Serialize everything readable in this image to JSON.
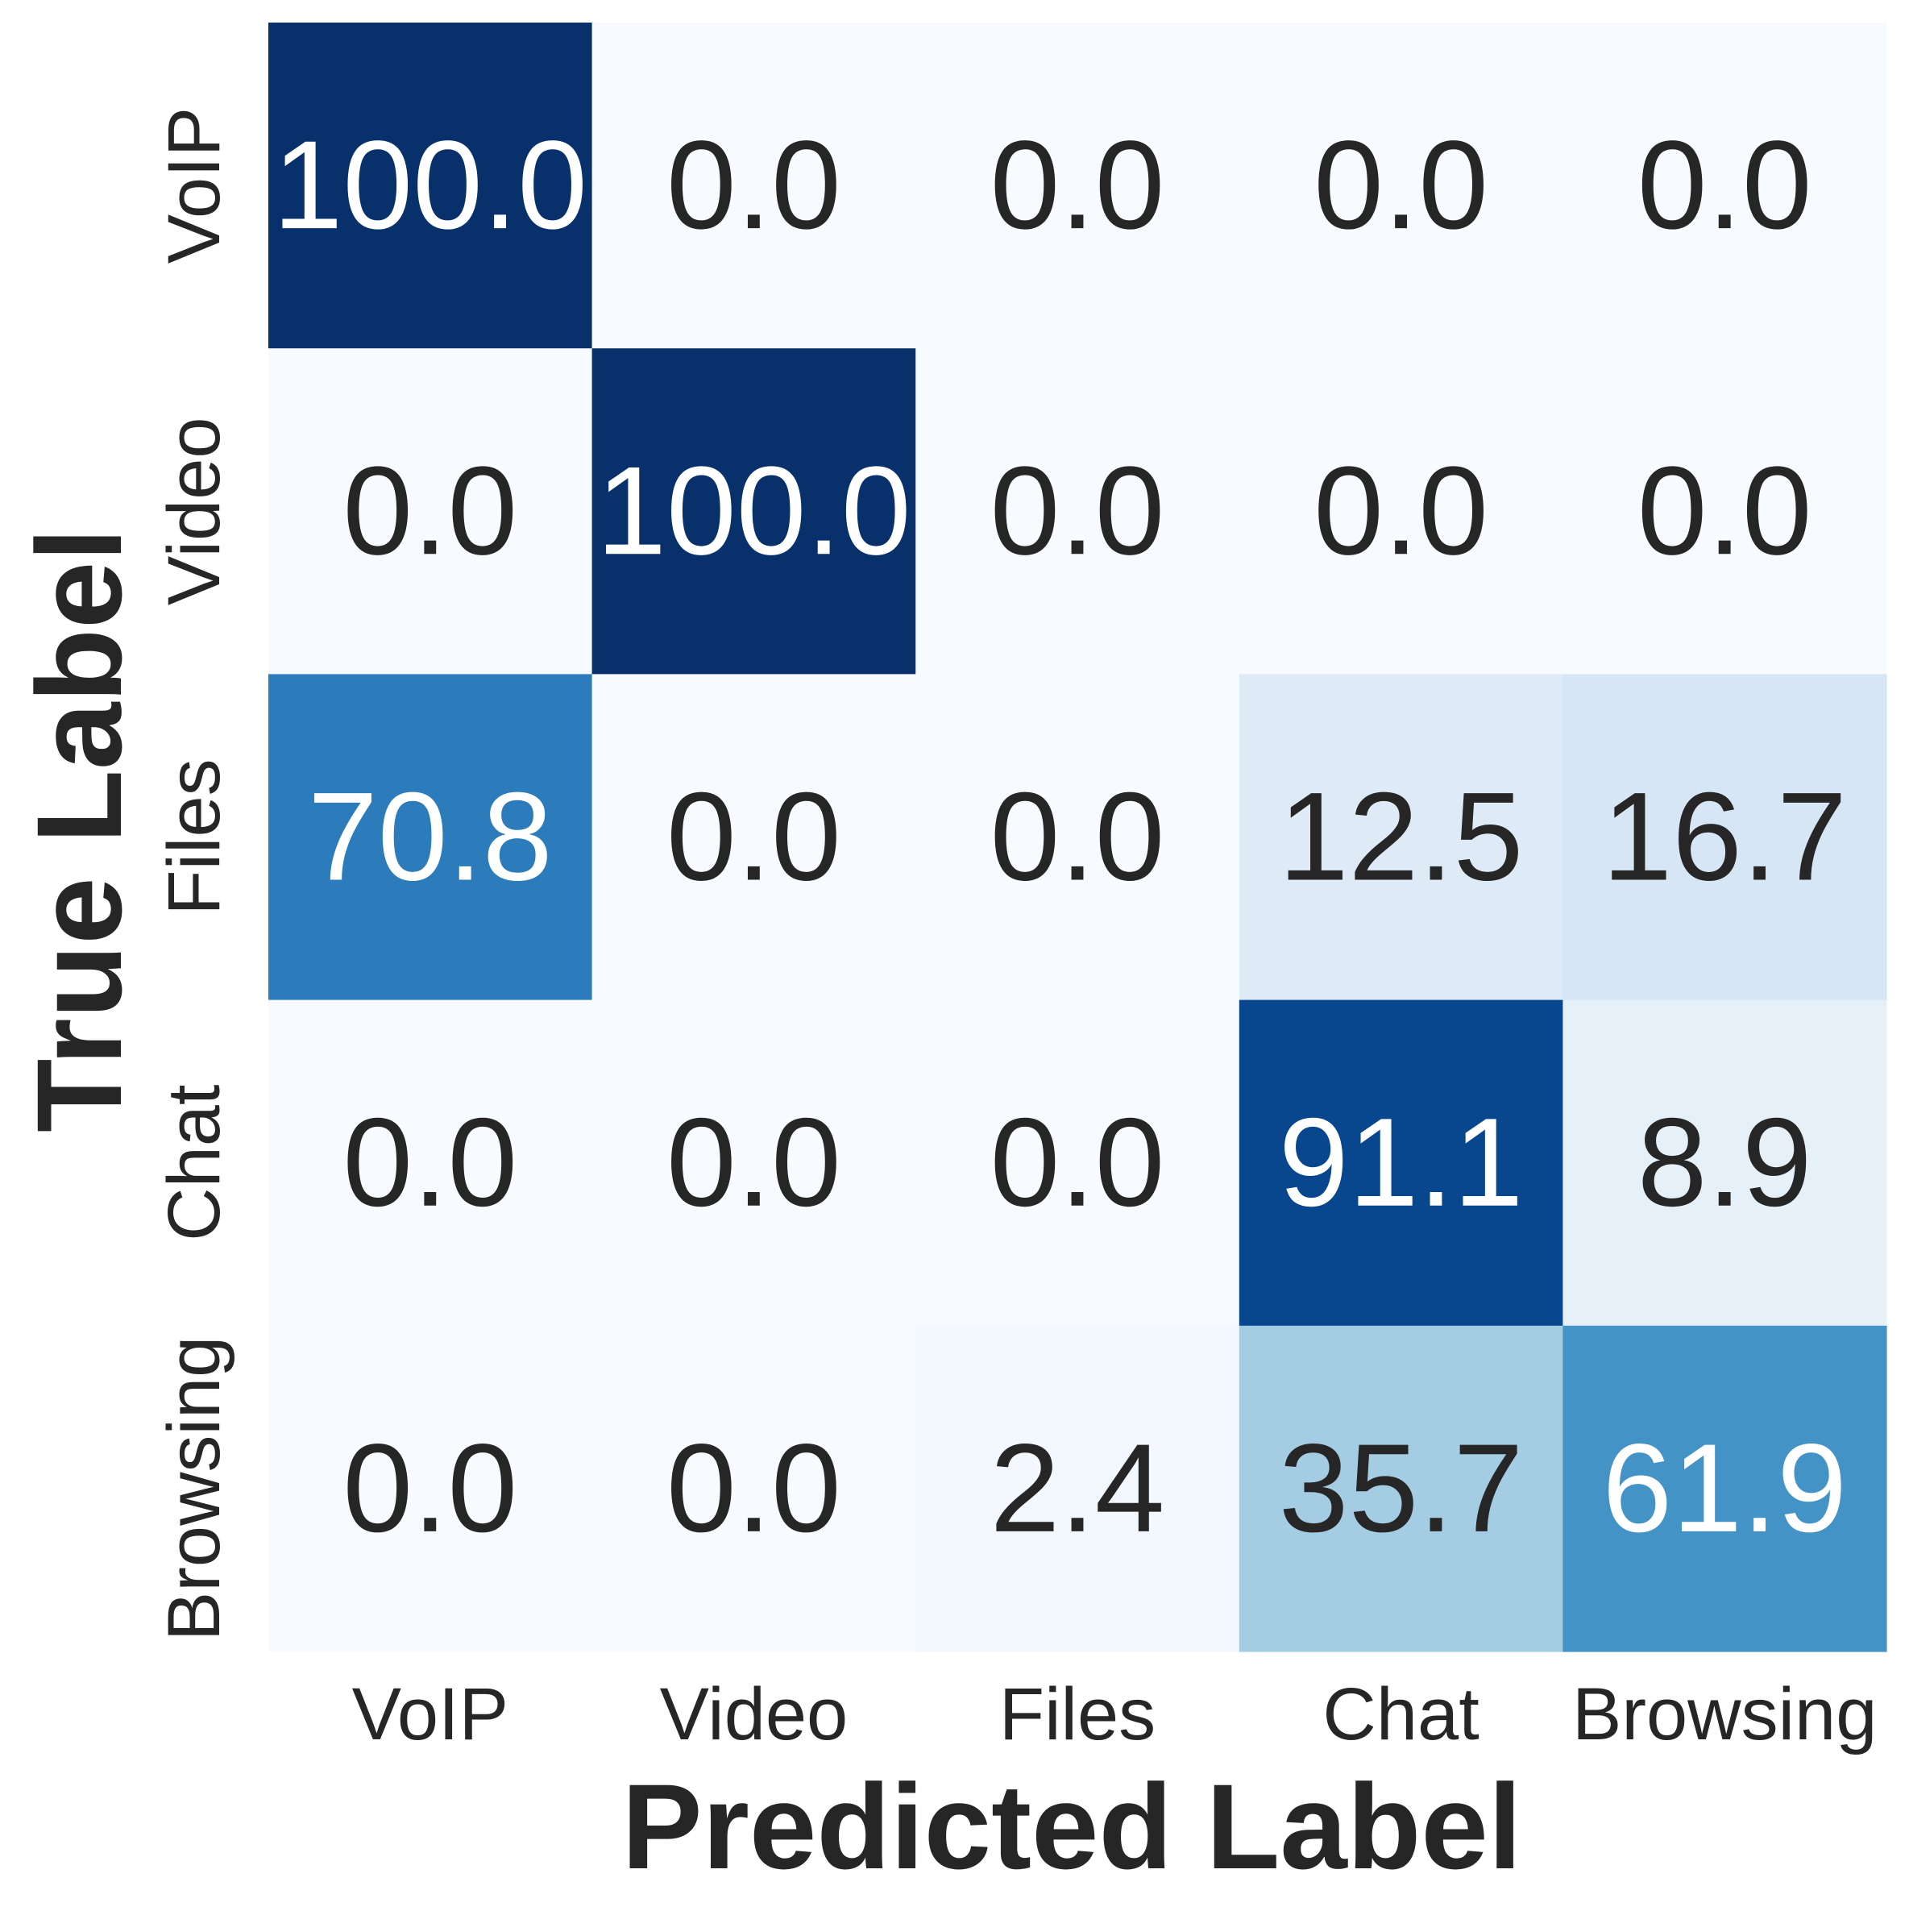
{
  "chart_data": {
    "type": "heatmap",
    "title": "",
    "xlabel": "Predicted Label",
    "ylabel": "True Label",
    "x_categories": [
      "VoIP",
      "Video",
      "Files",
      "Chat",
      "Browsing"
    ],
    "y_categories": [
      "VoIP",
      "Video",
      "Files",
      "Chat",
      "Browsing"
    ],
    "values": [
      [
        100.0,
        0.0,
        0.0,
        0.0,
        0.0
      ],
      [
        0.0,
        100.0,
        0.0,
        0.0,
        0.0
      ],
      [
        70.8,
        0.0,
        0.0,
        12.5,
        16.7
      ],
      [
        0.0,
        0.0,
        0.0,
        91.1,
        8.9
      ],
      [
        0.0,
        0.0,
        2.4,
        35.7,
        61.9
      ]
    ],
    "value_format": "0.0",
    "value_range": [
      0,
      100
    ],
    "colormap": "Blues",
    "colorbar": false,
    "grid": false,
    "colors": {
      "low": "#f7fbff",
      "high": "#08306b",
      "dark_text": "#262626",
      "light_text": "#ffffff"
    }
  }
}
